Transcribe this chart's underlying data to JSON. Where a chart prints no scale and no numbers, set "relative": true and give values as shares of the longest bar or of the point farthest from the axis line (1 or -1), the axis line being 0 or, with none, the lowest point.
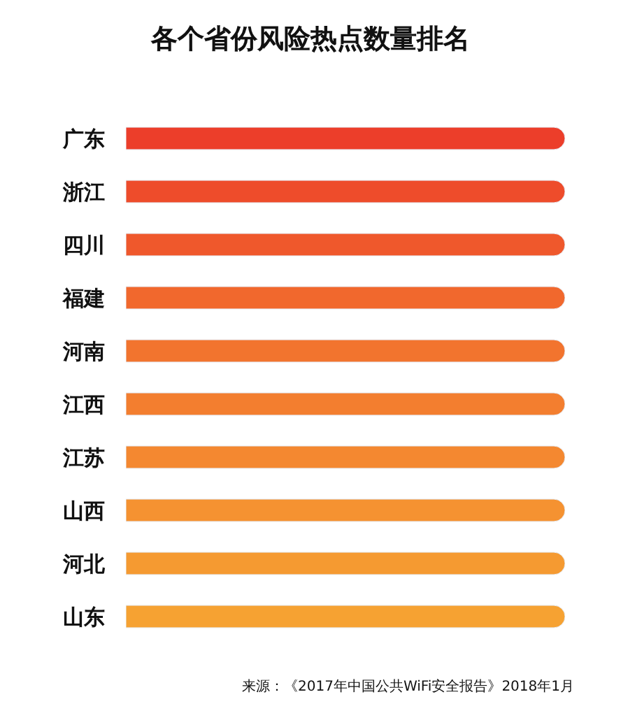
{
  "chart_data": {
    "type": "bar",
    "orientation": "horizontal",
    "relative": true,
    "title": "各个省份风险热点数量排名",
    "categories": [
      "广东",
      "浙江",
      "四川",
      "福建",
      "河南",
      "江西",
      "江苏",
      "山西",
      "河北",
      "山东"
    ],
    "values": [
      1,
      1,
      1,
      1,
      1,
      1,
      1,
      1,
      1,
      1
    ],
    "colors": [
      "#ec3e2a",
      "#ee4c2b",
      "#ef582c",
      "#f1682d",
      "#f2742e",
      "#f37e2f",
      "#f48830",
      "#f59231",
      "#f59a31",
      "#f6a232"
    ],
    "annotations": [
      "来源：《2017年中国公共WiFi安全报告》2018年1月"
    ]
  }
}
